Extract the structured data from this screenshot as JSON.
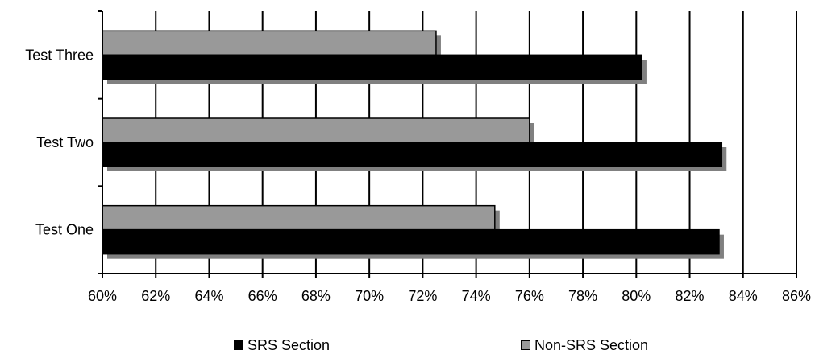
{
  "chart_data": {
    "type": "bar",
    "orientation": "horizontal",
    "categories": [
      "Test Three",
      "Test Two",
      "Test One"
    ],
    "series": [
      {
        "name": "Non-SRS Section",
        "color": "#999999",
        "values": [
          72.5,
          76.0,
          74.7
        ]
      },
      {
        "name": "SRS Section",
        "color": "#000000",
        "values": [
          80.2,
          83.2,
          83.1
        ]
      }
    ],
    "xlim": [
      60,
      86
    ],
    "x_ticks": [
      60,
      62,
      64,
      66,
      68,
      70,
      72,
      74,
      76,
      78,
      80,
      82,
      84,
      86
    ],
    "tick_suffix": "%",
    "grid": "vertical",
    "legend_position": "bottom",
    "title": "",
    "xlabel": "",
    "ylabel": ""
  },
  "legend": {
    "srs_label": "SRS Section",
    "non_srs_label": "Non-SRS Section"
  }
}
